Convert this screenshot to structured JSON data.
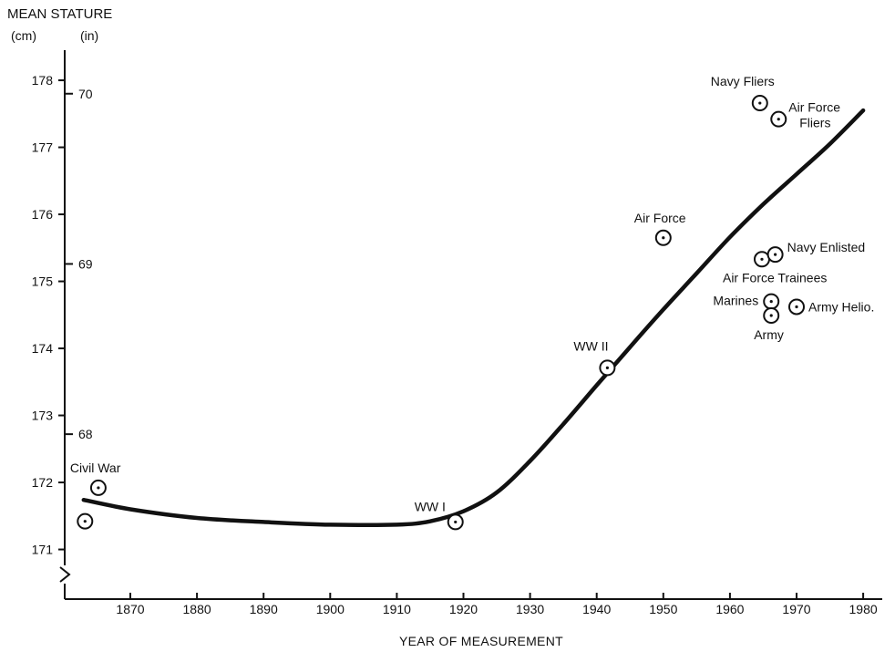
{
  "chart_data": {
    "type": "scatter",
    "title": "",
    "ylabel": "MEAN STATURE",
    "ylabel_units_cm": "(cm)",
    "ylabel_units_in": "(in)",
    "xlabel": "YEAR OF MEASUREMENT",
    "xlim": [
      1862,
      1984
    ],
    "ylim": [
      170.3,
      178.2
    ],
    "x_ticks": [
      "1870",
      "1880",
      "1890",
      "1900",
      "1910",
      "1920",
      "1930",
      "1940",
      "1950",
      "1960",
      "1970",
      "1980"
    ],
    "y_ticks_cm": [
      "171",
      "172",
      "173",
      "174",
      "175",
      "176",
      "177",
      "178"
    ],
    "y_ticks_in": [
      "68",
      "69",
      "70"
    ],
    "axis_break": true,
    "grid": false,
    "legend": "none",
    "colors": {
      "ink": "#111111",
      "background": "#ffffff"
    },
    "trend_line": {
      "x": [
        1863,
        1870,
        1880,
        1890,
        1900,
        1910,
        1915,
        1920,
        1925,
        1930,
        1935,
        1940,
        1945,
        1950,
        1955,
        1960,
        1965,
        1970,
        1975,
        1980
      ],
      "y": [
        171.74,
        171.6,
        171.47,
        171.41,
        171.37,
        171.37,
        171.42,
        171.57,
        171.85,
        172.32,
        172.87,
        173.45,
        174.02,
        174.58,
        175.12,
        175.66,
        176.15,
        176.6,
        177.05,
        177.55
      ]
    },
    "points": [
      {
        "x": 1863.2,
        "y": 171.42,
        "label": ""
      },
      {
        "x": 1865.2,
        "y": 171.92,
        "label": "Civil War"
      },
      {
        "x": 1918.8,
        "y": 171.41,
        "label": "WW I"
      },
      {
        "x": 1941.6,
        "y": 173.71,
        "label": "WW II"
      },
      {
        "x": 1950.0,
        "y": 175.65,
        "label": "Air Force"
      },
      {
        "x": 1964.5,
        "y": 177.66,
        "label": "Navy Fliers"
      },
      {
        "x": 1967.3,
        "y": 177.42,
        "label": "Air Force Fliers"
      },
      {
        "x": 1964.8,
        "y": 175.33,
        "label": "Air Force Trainees"
      },
      {
        "x": 1966.8,
        "y": 175.4,
        "label": "Navy Enlisted"
      },
      {
        "x": 1966.2,
        "y": 174.7,
        "label": "Marines"
      },
      {
        "x": 1966.2,
        "y": 174.49,
        "label": "Army"
      },
      {
        "x": 1970.0,
        "y": 174.62,
        "label": "Army Helio."
      }
    ]
  }
}
